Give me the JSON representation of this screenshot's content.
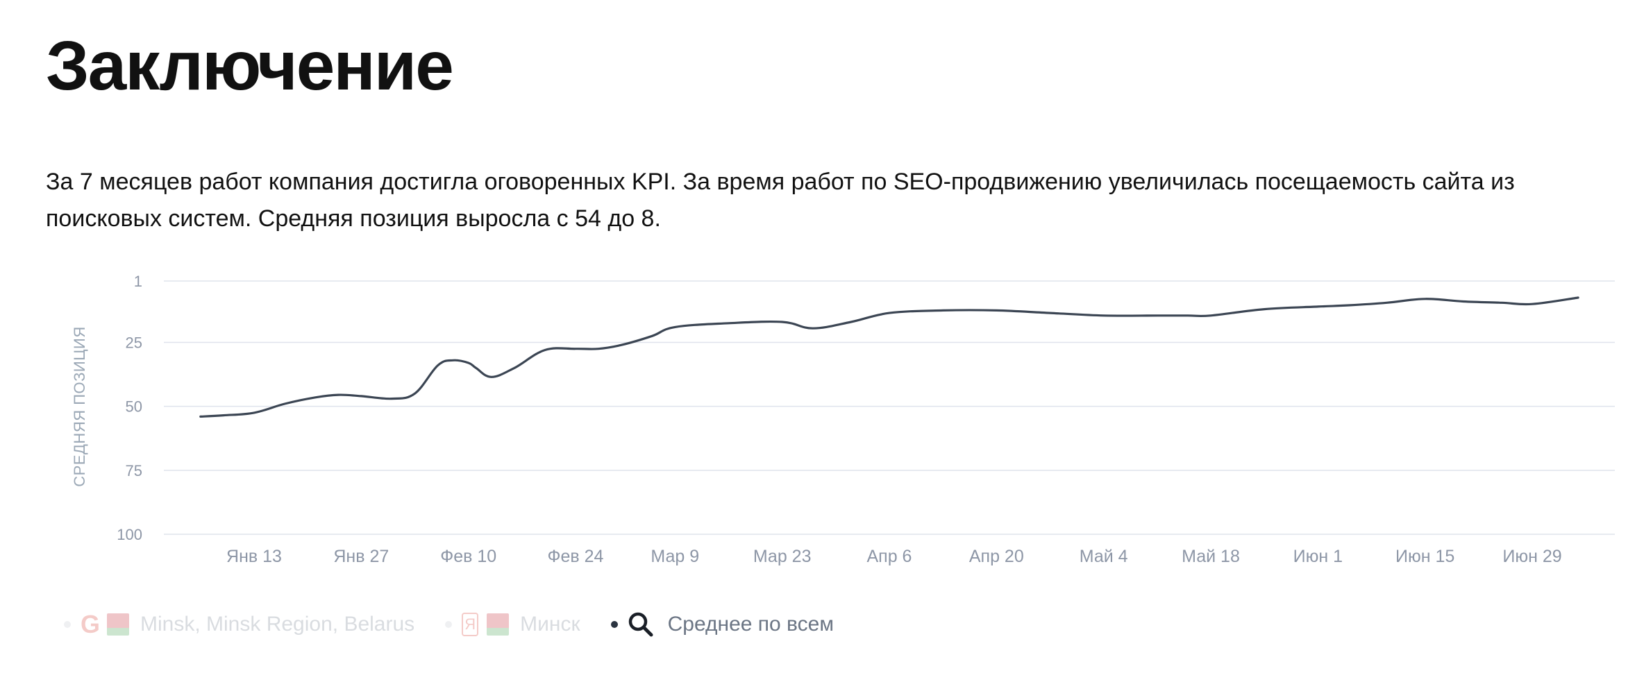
{
  "page": {
    "title": "Заключение",
    "description": "За 7 месяцев работ компания достигла оговоренных KPI. За время работ по SEO-продвижению увеличилась посещаемость сайта из поисковых систем. Средняя позиция выросла с 54 до 8."
  },
  "legend": {
    "items": [
      {
        "label": "Minsk, Minsk Region, Belarus",
        "engine_icon": "google-icon",
        "flag_icon": "belarus-flag-icon",
        "active": false
      },
      {
        "label": "Минск",
        "engine_icon": "yandex-icon",
        "flag_icon": "belarus-flag-icon",
        "active": false
      },
      {
        "label": "Среднее по всем",
        "engine_icon": "search-icon",
        "active": true
      }
    ]
  },
  "chart_data": {
    "type": "line",
    "ylabel": "СРЕДНЯЯ ПОЗИЦИЯ",
    "y_reversed": true,
    "ylim": [
      1,
      100
    ],
    "y_ticks": [
      "1",
      "25",
      "50",
      "75",
      "100"
    ],
    "x_ticks": [
      "Янв 13",
      "Янв 27",
      "Фев 10",
      "Фев 24",
      "Мар 9",
      "Мар 23",
      "Апр 6",
      "Апр 20",
      "Май 4",
      "Май 18",
      "Июн 1",
      "Июн 15",
      "Июн 29"
    ],
    "series": [
      {
        "name": "Среднее по всем",
        "color": "#3b4553",
        "x": [
          "Янв 6",
          "Янв 9",
          "Янв 13",
          "Янв 17",
          "Янв 21",
          "Янв 24",
          "Янв 27",
          "Янв 31",
          "Фев 3",
          "Фев 6",
          "Фев 8",
          "Фев 10",
          "Фев 11",
          "Фев 13",
          "Фев 16",
          "Фев 20",
          "Фев 24",
          "Фев 27",
          "Мар 2",
          "Мар 6",
          "Мар 9",
          "Мар 16",
          "Мар 23",
          "Мар 27",
          "Апр 1",
          "Апр 6",
          "Апр 13",
          "Апр 20",
          "Апр 27",
          "Май 4",
          "Май 11",
          "Май 15",
          "Май 18",
          "Май 25",
          "Июн 1",
          "Июн 5",
          "Июн 10",
          "Июн 15",
          "Июн 20",
          "Июн 25",
          "Июн 29",
          "Июл 5"
        ],
        "values": [
          54,
          53.5,
          52.5,
          49,
          46.5,
          45.5,
          46,
          47,
          45,
          34,
          32,
          33,
          35,
          38.5,
          35,
          28,
          27.5,
          27.5,
          26,
          22.5,
          19,
          17.5,
          17,
          19.5,
          17,
          13.5,
          12.5,
          12.5,
          13.5,
          14.5,
          14.5,
          14.5,
          14.5,
          12,
          11,
          10.5,
          9.5,
          8,
          9,
          9.5,
          10,
          7.5
        ]
      }
    ]
  }
}
